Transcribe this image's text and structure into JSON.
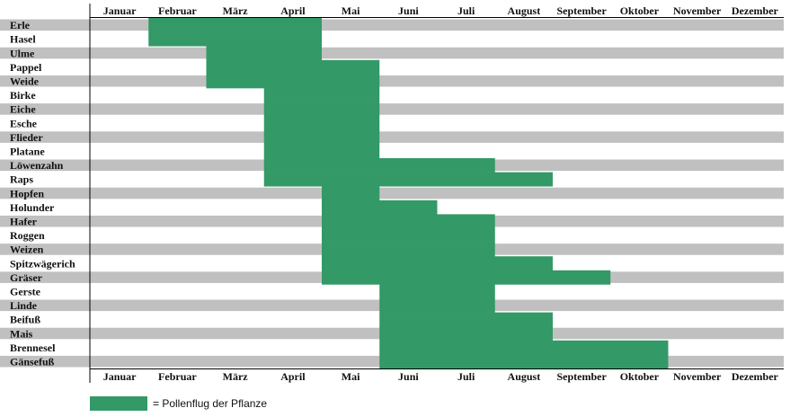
{
  "chart_data": {
    "type": "gantt",
    "months": [
      "Januar",
      "Februar",
      "März",
      "April",
      "Mai",
      "Juni",
      "Juli",
      "August",
      "September",
      "Oktober",
      "November",
      "Dezember"
    ],
    "plants": [
      {
        "name": "Erle",
        "start": 2,
        "end": 4
      },
      {
        "name": "Hasel",
        "start": 2,
        "end": 4
      },
      {
        "name": "Ulme",
        "start": 3,
        "end": 4
      },
      {
        "name": "Pappel",
        "start": 3,
        "end": 5
      },
      {
        "name": "Weide",
        "start": 3,
        "end": 5
      },
      {
        "name": "Birke",
        "start": 4,
        "end": 5
      },
      {
        "name": "Eiche",
        "start": 4,
        "end": 5
      },
      {
        "name": "Esche",
        "start": 4,
        "end": 5
      },
      {
        "name": "Flieder",
        "start": 4,
        "end": 5
      },
      {
        "name": "Platane",
        "start": 4,
        "end": 5
      },
      {
        "name": "Löwenzahn",
        "start": 4,
        "end": 7
      },
      {
        "name": "Raps",
        "start": 4,
        "end": 8
      },
      {
        "name": "Hopfen",
        "start": 5,
        "end": 5
      },
      {
        "name": "Holunder",
        "start": 5,
        "end": 6
      },
      {
        "name": "Hafer",
        "start": 5,
        "end": 7
      },
      {
        "name": "Roggen",
        "start": 5,
        "end": 7
      },
      {
        "name": "Weizen",
        "start": 5,
        "end": 7
      },
      {
        "name": "Spitzwägerich",
        "start": 5,
        "end": 8
      },
      {
        "name": "Gräser",
        "start": 5,
        "end": 9
      },
      {
        "name": "Gerste",
        "start": 6,
        "end": 7
      },
      {
        "name": "Linde",
        "start": 6,
        "end": 7
      },
      {
        "name": "Beifuß",
        "start": 6,
        "end": 8
      },
      {
        "name": "Mais",
        "start": 6,
        "end": 8
      },
      {
        "name": "Brennesel",
        "start": 6,
        "end": 10
      },
      {
        "name": "Gänsefuß",
        "start": 6,
        "end": 10
      }
    ],
    "colors": {
      "bloom": "#339966",
      "stripe": "#c0c0c0",
      "background": "#ffffff"
    },
    "legend": {
      "label": "= Pollenflug der Pflanze",
      "placement": "bottom-left"
    }
  }
}
